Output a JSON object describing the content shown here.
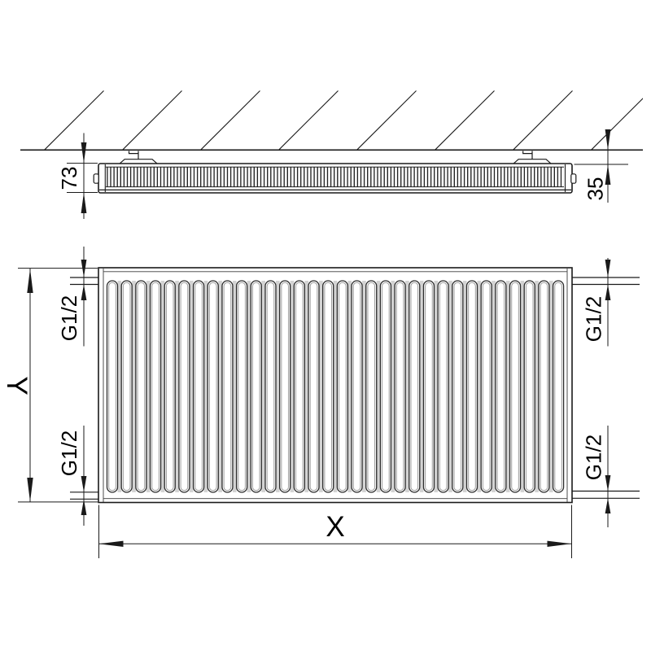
{
  "drawing": {
    "title": "radiator-dimension-drawing",
    "dimensions": {
      "radiator_depth": "73",
      "wall_clearance": "35",
      "height": "Y",
      "length": "X",
      "connections": {
        "top_left": "G1/2",
        "bottom_left": "G1/2",
        "top_right": "G1/2",
        "bottom_right": "G1/2"
      }
    },
    "colors": {
      "line": "#1a1a1a",
      "secondary_line": "#9e9e9e",
      "rib_gap": "#c4c4c4",
      "background": "#ffffff"
    },
    "geometry": {
      "rib_count": 32,
      "hatch_wall_x_positions": [
        55,
        151,
        247,
        343,
        439,
        535,
        631,
        727
      ],
      "views": [
        "side-section-at-wall",
        "front-elevation"
      ]
    }
  }
}
